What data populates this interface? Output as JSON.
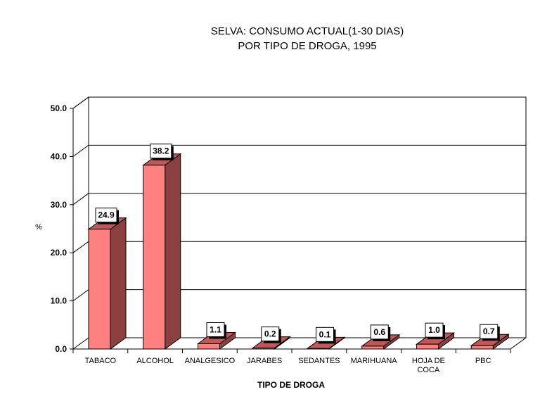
{
  "chart_data": {
    "type": "bar",
    "title": "SELVA: CONSUMO ACTUAL(1-30 DIAS)",
    "subtitle": "POR TIPO DE DROGA, 1995",
    "xlabel": "TIPO DE DROGA",
    "ylabel": "%",
    "ylim": [
      0,
      50
    ],
    "yticks": [
      "0.0",
      "10.0",
      "20.0",
      "30.0",
      "40.0",
      "50.0"
    ],
    "grid": true,
    "categories": [
      [
        "TABACO"
      ],
      [
        "ALCOHOL"
      ],
      [
        "ANALGESICO"
      ],
      [
        "JARABES"
      ],
      [
        "SEDANTES"
      ],
      [
        "MARIHUANA"
      ],
      [
        "HOJA DE",
        "COCA"
      ],
      [
        "PBC"
      ]
    ],
    "values": [
      24.9,
      38.2,
      1.1,
      0.2,
      0.1,
      0.6,
      1.0,
      0.7
    ],
    "value_labels": [
      "24.9",
      "38.2",
      "1.1",
      "0.2",
      "0.1",
      "0.6",
      "1.0",
      "0.7"
    ],
    "colors": {
      "bar_front": "#ff8080",
      "bar_side": "#8c4040",
      "bar_top": "#c05858",
      "grid": "#000000",
      "background": "#ffffff"
    }
  }
}
